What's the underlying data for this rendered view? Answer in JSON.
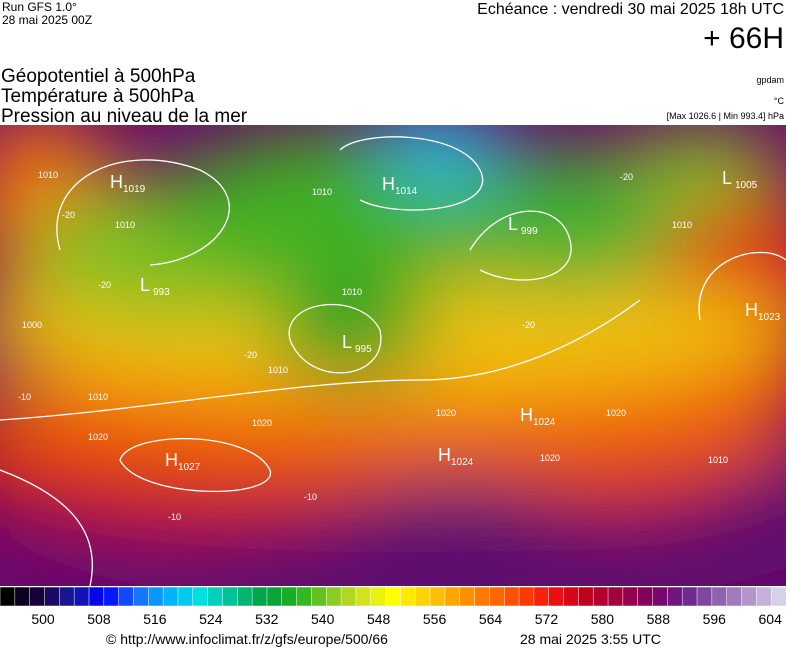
{
  "header": {
    "run": "Run GFS 1.0°",
    "run_date": "28 mai 2025 00Z",
    "valid": "Echéance : vendredi 30 mai 2025 18h UTC",
    "lead": "+ 66H",
    "titles": [
      "Géopotentiel à 500hPa",
      "Température à 500hPa",
      "Pression au niveau de la mer"
    ],
    "units": [
      "gpdam",
      "°C",
      "[Max 1026.6 | Min 993.4] hPa"
    ]
  },
  "map": {
    "centers": [
      {
        "letter": "H",
        "value": 1019
      },
      {
        "letter": "H",
        "value": 1014
      },
      {
        "letter": "L",
        "value": 999
      },
      {
        "letter": "L",
        "value": 1005
      },
      {
        "letter": "L",
        "value": 993
      },
      {
        "letter": "H",
        "value": 1023
      },
      {
        "letter": "L",
        "value": 995
      },
      {
        "letter": "H",
        "value": 1024
      },
      {
        "letter": "H",
        "value": 1024
      },
      {
        "letter": "H",
        "value": 1027
      }
    ],
    "contour_labels": [
      1010,
      -20,
      1010,
      -20,
      1000,
      1010,
      1010,
      -20,
      1010,
      1010,
      -10,
      1020,
      1020,
      1020,
      1020,
      1020,
      1010,
      -10,
      -10,
      -20,
      1010,
      -20
    ]
  },
  "colorbar": {
    "labels": [
      500,
      508,
      516,
      524,
      532,
      540,
      548,
      556,
      564,
      572,
      580,
      588,
      596,
      604
    ]
  },
  "footer": {
    "url": "© http://www.infoclimat.fr/z/gfs/europe/500/66",
    "time": "28 mai 2025  3:55 UTC"
  }
}
